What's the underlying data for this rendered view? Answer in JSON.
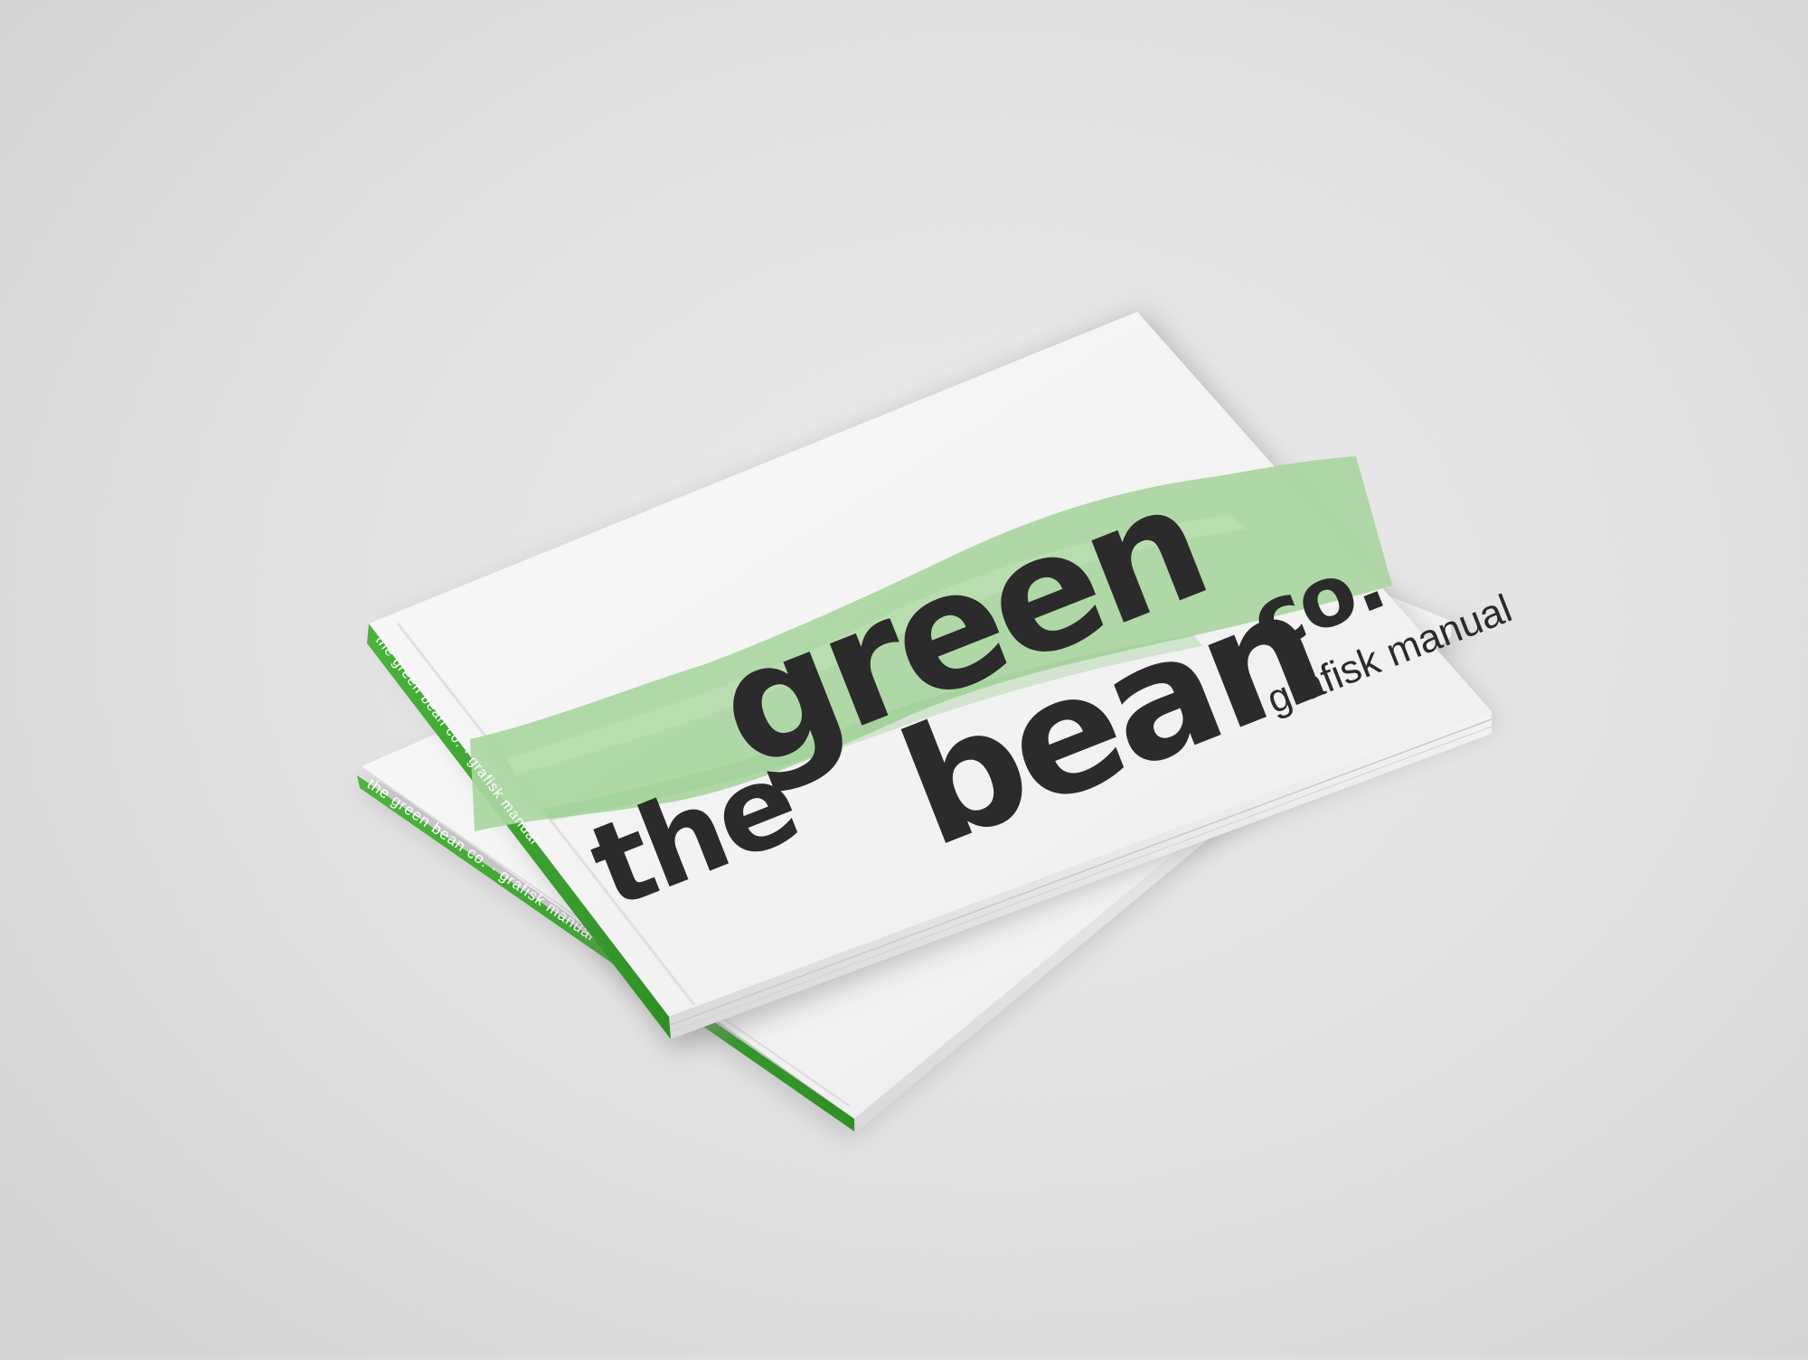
{
  "cover": {
    "logo_word_the": "the",
    "logo_word_green": "green",
    "logo_word_bean": "bean",
    "logo_word_co": "co.",
    "subtitle": "grafisk manual"
  },
  "spine": {
    "top_book_text": "the green bean co. · grafisk manual",
    "bottom_book_text": "the green bean co. · grafisk manual"
  },
  "colors": {
    "brand_green": "#3a9e2f",
    "brush_green": "#a9d6a0",
    "ink": "#2b2b2b",
    "paper": "#f5f5f5"
  }
}
